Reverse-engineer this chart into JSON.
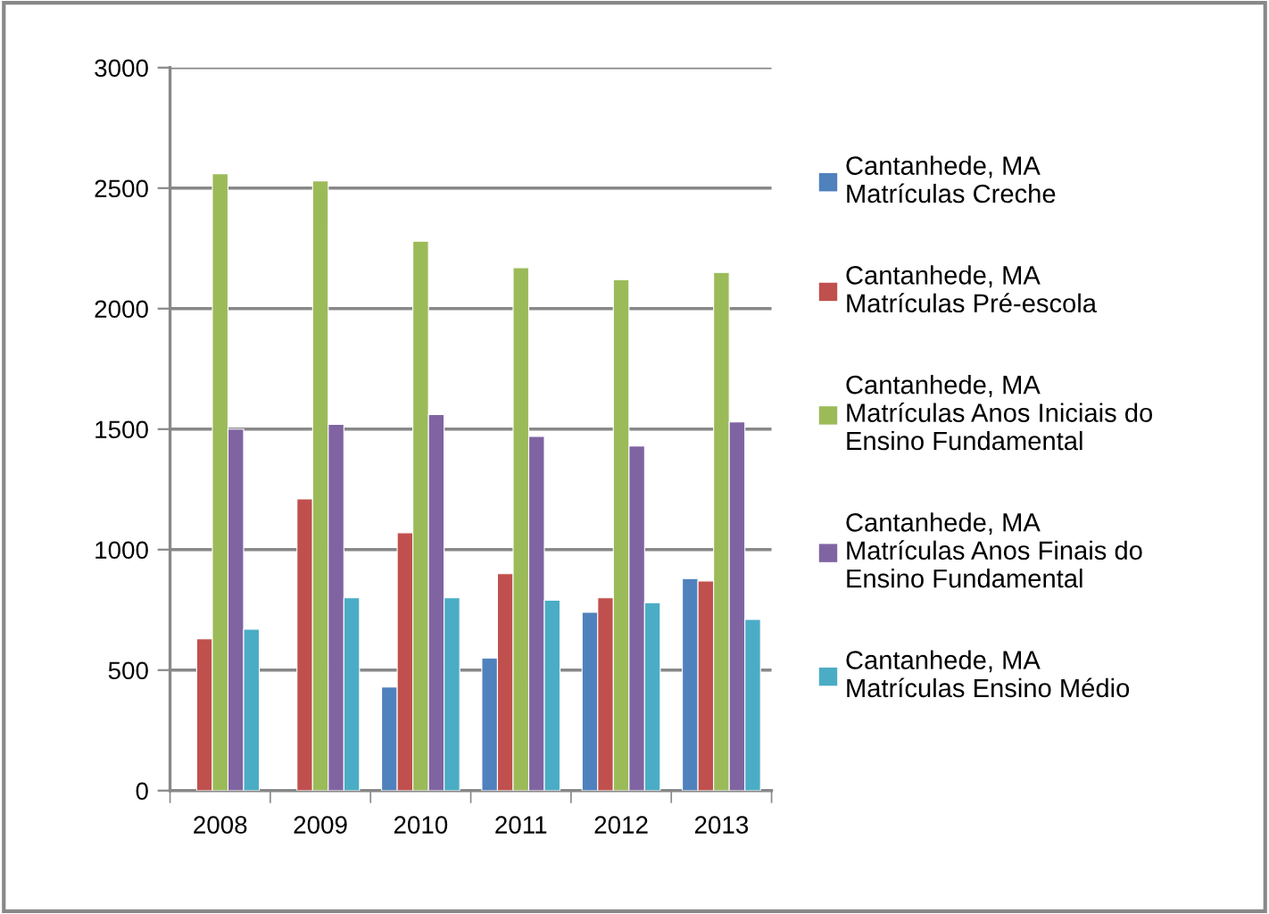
{
  "chart_data": {
    "type": "bar",
    "categories": [
      "2008",
      "2009",
      "2010",
      "2011",
      "2012",
      "2013"
    ],
    "series": [
      {
        "name": "Cantanhede, MA\nMatrículas Creche",
        "color": "#4f81bd",
        "values": [
          null,
          null,
          430,
          550,
          740,
          880
        ]
      },
      {
        "name": "Cantanhede, MA\nMatrículas Pré-escola",
        "color": "#c0504d",
        "values": [
          630,
          1210,
          1070,
          900,
          800,
          870
        ]
      },
      {
        "name": "Cantanhede, MA\nMatrículas Anos Iniciais do\nEnsino Fundamental",
        "color": "#9bbb59",
        "values": [
          2560,
          2530,
          2280,
          2170,
          2120,
          2150
        ]
      },
      {
        "name": "Cantanhede, MA\nMatrículas Anos Finais do\nEnsino Fundamental",
        "color": "#8064a2",
        "values": [
          1500,
          1520,
          1560,
          1470,
          1430,
          1530
        ]
      },
      {
        "name": "Cantanhede, MA\nMatrículas Ensino Médio",
        "color": "#4bacc6",
        "values": [
          670,
          800,
          800,
          790,
          780,
          710
        ]
      }
    ],
    "ylim": [
      0,
      3000
    ],
    "yticks": [
      0,
      500,
      1000,
      1500,
      2000,
      2500,
      3000
    ],
    "grid": "y",
    "legend": "right"
  }
}
